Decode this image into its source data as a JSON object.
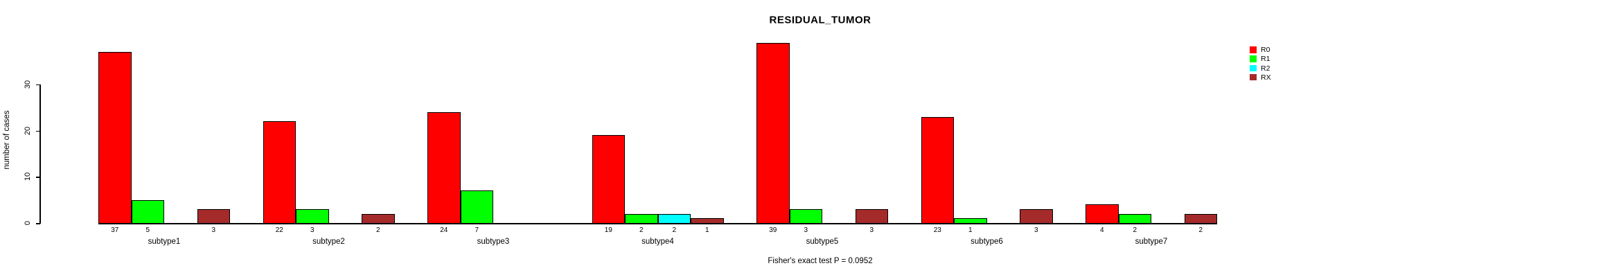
{
  "chart_data": {
    "type": "bar",
    "title": "RESIDUAL_TUMOR",
    "ylabel": "number of cases",
    "xlabel": "",
    "footnote": "Fisher's exact test P = 0.0952",
    "categories": [
      "subtype1",
      "subtype2",
      "subtype3",
      "subtype4",
      "subtype5",
      "subtype6",
      "subtype7"
    ],
    "series": [
      {
        "name": "R0",
        "color": "#FF0000",
        "values": [
          37,
          22,
          24,
          19,
          39,
          23,
          4
        ]
      },
      {
        "name": "R1",
        "color": "#00FF00",
        "values": [
          5,
          3,
          7,
          2,
          3,
          1,
          2
        ]
      },
      {
        "name": "R2",
        "color": "#00FFFF",
        "values": [
          0,
          0,
          0,
          2,
          0,
          0,
          0
        ]
      },
      {
        "name": "RX",
        "color": "#A52A2A",
        "values": [
          3,
          2,
          0,
          1,
          3,
          3,
          2
        ]
      }
    ],
    "ylim": [
      0,
      30
    ],
    "yticks": [
      0,
      10,
      20,
      30
    ],
    "grid": false,
    "legend_position": "right-inside",
    "bar_value_labels_shown": true,
    "zero_value_bars_hidden": true,
    "axis_color": "#000000",
    "background_color": "#FFFFFF"
  }
}
